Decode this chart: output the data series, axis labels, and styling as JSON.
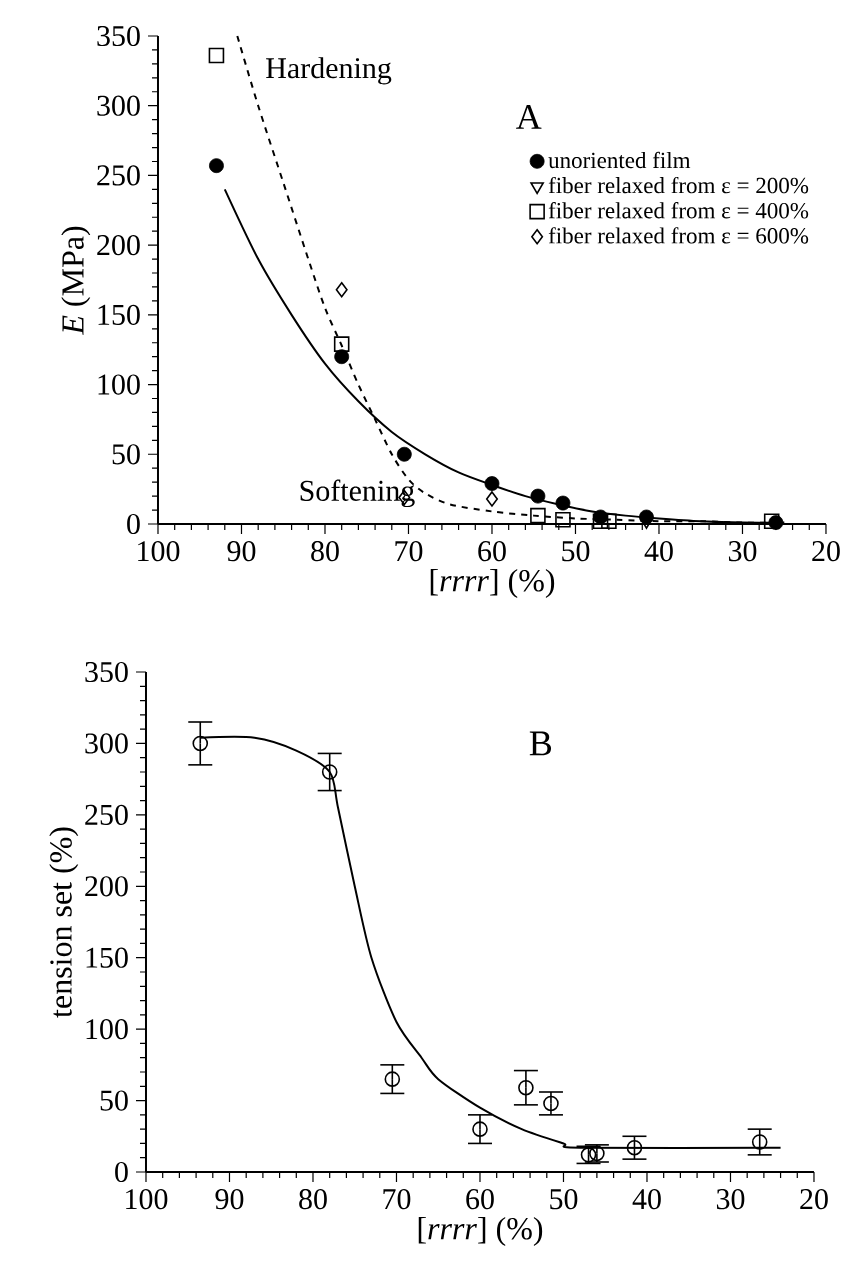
{
  "chart_data": [
    {
      "type": "scatter",
      "xlabel": "[*rrrr*] (%)",
      "ylabel": "*E* (MPa)",
      "xlim": [
        100,
        20
      ],
      "ylim": [
        0,
        350
      ],
      "xticks": [
        100,
        90,
        80,
        70,
        60,
        50,
        40,
        30,
        20
      ],
      "yticks": [
        0,
        50,
        100,
        150,
        200,
        250,
        300,
        350
      ],
      "legend": "top right",
      "grid": false,
      "annotations": [
        "A",
        "Hardening",
        "Softening"
      ],
      "series": [
        {
          "name": "unoriented film",
          "color": "#000000",
          "marker": "circle",
          "x": [
            93,
            78,
            70.5,
            60,
            54.5,
            51.5,
            47,
            41.5,
            26
          ],
          "values": [
            257,
            120,
            50,
            29,
            20,
            15,
            5,
            5,
            1
          ]
        },
        {
          "name": "fiber relaxed from ε = 200%",
          "color": "#000000",
          "marker": "triangle",
          "x": [
            41.5
          ],
          "values": [
            2
          ]
        },
        {
          "name": "fiber relaxed from ε = 400%",
          "color": "#000000",
          "marker": "square",
          "x": [
            93,
            78,
            54.5,
            51.5,
            47,
            46,
            26.5
          ],
          "values": [
            336,
            129,
            6,
            3,
            2,
            2,
            2
          ]
        },
        {
          "name": "fiber relaxed from ε = 600%",
          "color": "#000000",
          "marker": "diamond",
          "x": [
            78,
            70.5,
            60
          ],
          "values": [
            168,
            19,
            18
          ]
        },
        {
          "type": "line",
          "color": "#000000",
          "line_style": "solid",
          "x": [
            92,
            88,
            84,
            80,
            76,
            72,
            68,
            64,
            60,
            56,
            52,
            48,
            44,
            40,
            35,
            30,
            25
          ],
          "values": [
            240,
            190,
            150,
            115,
            88,
            66,
            50,
            37,
            28,
            20,
            14,
            9,
            6,
            4,
            2,
            1,
            1
          ]
        },
        {
          "type": "line",
          "color": "#000000",
          "line_style": "dashed",
          "x": [
            90.5,
            88,
            85,
            82,
            80,
            78,
            76,
            74,
            72,
            70,
            68,
            65,
            60,
            55,
            50,
            45,
            40,
            35,
            30,
            25
          ],
          "values": [
            350,
            300,
            245,
            190,
            155,
            128,
            100,
            75,
            50,
            32,
            22,
            14,
            9,
            6,
            4,
            3,
            2,
            2,
            1,
            1
          ]
        }
      ]
    },
    {
      "type": "scatter",
      "xlabel": "[*rrrr*] (%)",
      "ylabel": "tension set (%)",
      "xlim": [
        100,
        20
      ],
      "ylim": [
        0,
        350
      ],
      "xticks": [
        100,
        90,
        80,
        70,
        60,
        50,
        40,
        30,
        20
      ],
      "yticks": [
        0,
        50,
        100,
        150,
        200,
        250,
        300,
        350
      ],
      "grid": false,
      "annotations": [
        "B"
      ],
      "series": [
        {
          "color": "#000000",
          "marker": "circle",
          "x": [
            93.5,
            78,
            70.5,
            60,
            54.5,
            51.5,
            47,
            46,
            41.5,
            26.5
          ],
          "values": [
            300,
            280,
            65,
            30,
            59,
            48,
            12,
            13,
            17,
            21
          ],
          "errors": [
            15,
            13,
            10,
            10,
            12,
            8,
            6,
            6,
            8,
            9
          ]
        },
        {
          "type": "line",
          "color": "#000000",
          "line_style": "solid",
          "x": [
            93.5,
            87,
            82,
            78,
            77,
            75,
            73,
            70,
            67,
            65,
            60,
            55,
            50,
            48,
            24
          ],
          "values": [
            304,
            304,
            295,
            280,
            255,
            200,
            150,
            105,
            80,
            65,
            45,
            30,
            20,
            17,
            17
          ]
        }
      ]
    }
  ]
}
